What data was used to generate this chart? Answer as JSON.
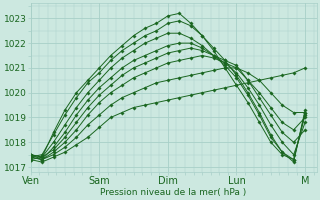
{
  "xlabel": "Pression niveau de la mer( hPa )",
  "ylim": [
    1016.8,
    1023.6
  ],
  "yticks": [
    1017,
    1018,
    1019,
    1020,
    1021,
    1022,
    1023
  ],
  "x_days": [
    "Ven",
    "Sam",
    "Dim",
    "Lun",
    "M"
  ],
  "day_positions": [
    0,
    24,
    48,
    72,
    96
  ],
  "xlim": [
    0,
    100
  ],
  "bg_color": "#cce8e0",
  "grid_color": "#a8cfc8",
  "line_color": "#1a6620",
  "series": [
    {
      "x": [
        0,
        4,
        8,
        12,
        16,
        20,
        24,
        28,
        32,
        36,
        40,
        44,
        48,
        52,
        56,
        60,
        64,
        68,
        72,
        76,
        80,
        84,
        88,
        92,
        96
      ],
      "y": [
        1017.3,
        1017.2,
        1017.4,
        1017.6,
        1017.9,
        1018.2,
        1018.6,
        1019.0,
        1019.2,
        1019.4,
        1019.5,
        1019.6,
        1019.7,
        1019.8,
        1019.9,
        1020.0,
        1020.1,
        1020.2,
        1020.3,
        1020.4,
        1020.5,
        1020.6,
        1020.7,
        1020.8,
        1021.0
      ]
    },
    {
      "x": [
        0,
        4,
        8,
        12,
        16,
        20,
        24,
        28,
        32,
        36,
        40,
        44,
        48,
        52,
        56,
        60,
        64,
        68,
        72,
        76,
        80,
        84,
        88,
        92,
        96
      ],
      "y": [
        1017.4,
        1017.3,
        1017.5,
        1017.8,
        1018.2,
        1018.7,
        1019.1,
        1019.5,
        1019.8,
        1020.0,
        1020.2,
        1020.4,
        1020.5,
        1020.6,
        1020.7,
        1020.8,
        1020.9,
        1021.0,
        1021.0,
        1020.8,
        1020.5,
        1020.0,
        1019.5,
        1019.2,
        1019.2
      ]
    },
    {
      "x": [
        0,
        4,
        8,
        12,
        16,
        20,
        24,
        28,
        32,
        36,
        40,
        44,
        48,
        52,
        56,
        60,
        64,
        68,
        72,
        76,
        80,
        84,
        88,
        92,
        96
      ],
      "y": [
        1017.5,
        1017.3,
        1017.6,
        1018.0,
        1018.5,
        1019.1,
        1019.6,
        1020.0,
        1020.3,
        1020.6,
        1020.8,
        1021.0,
        1021.2,
        1021.3,
        1021.4,
        1021.5,
        1021.4,
        1021.2,
        1021.0,
        1020.5,
        1020.0,
        1019.4,
        1018.8,
        1018.5,
        1019.0
      ]
    },
    {
      "x": [
        0,
        4,
        8,
        12,
        16,
        20,
        24,
        28,
        32,
        36,
        40,
        44,
        48,
        52,
        56,
        60,
        64,
        68,
        72,
        76,
        80,
        84,
        88,
        92,
        96
      ],
      "y": [
        1017.5,
        1017.4,
        1017.7,
        1018.2,
        1018.8,
        1019.4,
        1019.9,
        1020.3,
        1020.7,
        1021.0,
        1021.2,
        1021.4,
        1021.6,
        1021.7,
        1021.8,
        1021.7,
        1021.5,
        1021.3,
        1021.1,
        1020.5,
        1019.8,
        1019.1,
        1018.4,
        1018.0,
        1018.5
      ]
    },
    {
      "x": [
        0,
        4,
        8,
        12,
        16,
        20,
        24,
        28,
        32,
        36,
        40,
        44,
        48,
        52,
        56,
        60,
        64,
        68,
        72,
        76,
        80,
        84,
        88,
        92,
        96
      ],
      "y": [
        1017.4,
        1017.3,
        1017.8,
        1018.4,
        1019.1,
        1019.7,
        1020.2,
        1020.6,
        1021.0,
        1021.3,
        1021.5,
        1021.7,
        1021.9,
        1022.0,
        1022.0,
        1021.8,
        1021.5,
        1021.2,
        1020.8,
        1020.2,
        1019.5,
        1018.7,
        1018.0,
        1017.5,
        1018.8
      ]
    },
    {
      "x": [
        0,
        4,
        8,
        12,
        16,
        20,
        24,
        28,
        32,
        36,
        40,
        44,
        48,
        52,
        56,
        60,
        64,
        68,
        72,
        76,
        80,
        84,
        88,
        92,
        96
      ],
      "y": [
        1017.5,
        1017.4,
        1018.0,
        1018.7,
        1019.4,
        1020.0,
        1020.5,
        1021.0,
        1021.4,
        1021.7,
        1022.0,
        1022.2,
        1022.4,
        1022.4,
        1022.2,
        1021.9,
        1021.5,
        1021.1,
        1020.6,
        1019.9,
        1019.1,
        1018.2,
        1017.6,
        1017.3,
        1019.2
      ]
    },
    {
      "x": [
        0,
        4,
        8,
        12,
        16,
        20,
        24,
        28,
        32,
        36,
        40,
        44,
        48,
        52,
        56,
        60,
        64,
        68,
        72,
        76,
        80,
        84,
        88,
        92,
        96
      ],
      "y": [
        1017.4,
        1017.5,
        1018.3,
        1019.1,
        1019.8,
        1020.4,
        1020.8,
        1021.3,
        1021.7,
        1022.0,
        1022.3,
        1022.5,
        1022.8,
        1022.9,
        1022.7,
        1022.3,
        1021.8,
        1021.3,
        1020.7,
        1020.0,
        1019.2,
        1018.3,
        1017.6,
        1017.2,
        1019.3
      ]
    },
    {
      "x": [
        0,
        4,
        8,
        12,
        16,
        20,
        24,
        28,
        32,
        36,
        40,
        44,
        48,
        52,
        56,
        60,
        64,
        68,
        72,
        76,
        80,
        84,
        88,
        92,
        96
      ],
      "y": [
        1017.3,
        1017.4,
        1018.4,
        1019.3,
        1020.0,
        1020.5,
        1021.0,
        1021.5,
        1021.9,
        1022.3,
        1022.6,
        1022.8,
        1023.1,
        1023.2,
        1022.8,
        1022.3,
        1021.7,
        1021.0,
        1020.3,
        1019.6,
        1018.8,
        1018.0,
        1017.5,
        1017.3,
        1019.1
      ]
    }
  ]
}
